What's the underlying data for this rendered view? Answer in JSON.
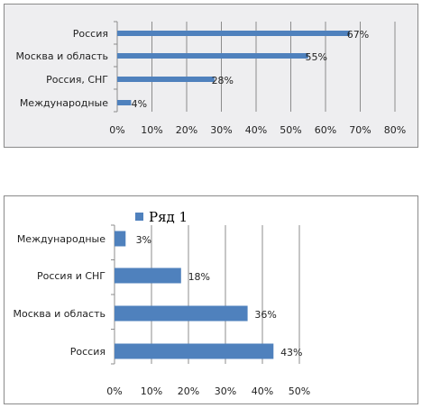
{
  "colors": {
    "bar": "#4f81bd",
    "grid": "#8c8c8c",
    "axis": "#8c8c8c"
  },
  "chart_data": [
    {
      "type": "bar",
      "orientation": "horizontal",
      "categories": [
        "Россия",
        "Москва и область",
        "Россия, СНГ",
        "Международные"
      ],
      "values": [
        67,
        55,
        28,
        4
      ],
      "data_labels": [
        "67%",
        "55%",
        "28%",
        "4%"
      ],
      "xlim": [
        0,
        80
      ],
      "ticks": [
        "0%",
        "10%",
        "20%",
        "30%",
        "40%",
        "50%",
        "60%",
        "70%",
        "80%"
      ],
      "grid": true,
      "legend": null
    },
    {
      "type": "bar",
      "orientation": "horizontal",
      "categories": [
        "Международные",
        "Россия и СНГ",
        "Москва и область",
        "Россия"
      ],
      "values": [
        3,
        18,
        36,
        43
      ],
      "data_labels": [
        "3%",
        "18%",
        "36%",
        "43%"
      ],
      "xlim": [
        0,
        50
      ],
      "ticks": [
        "0%",
        "10%",
        "20%",
        "30%",
        "40%",
        "50%"
      ],
      "grid": true,
      "legend": {
        "position": "top",
        "entries": [
          "Ряд 1"
        ]
      }
    }
  ]
}
